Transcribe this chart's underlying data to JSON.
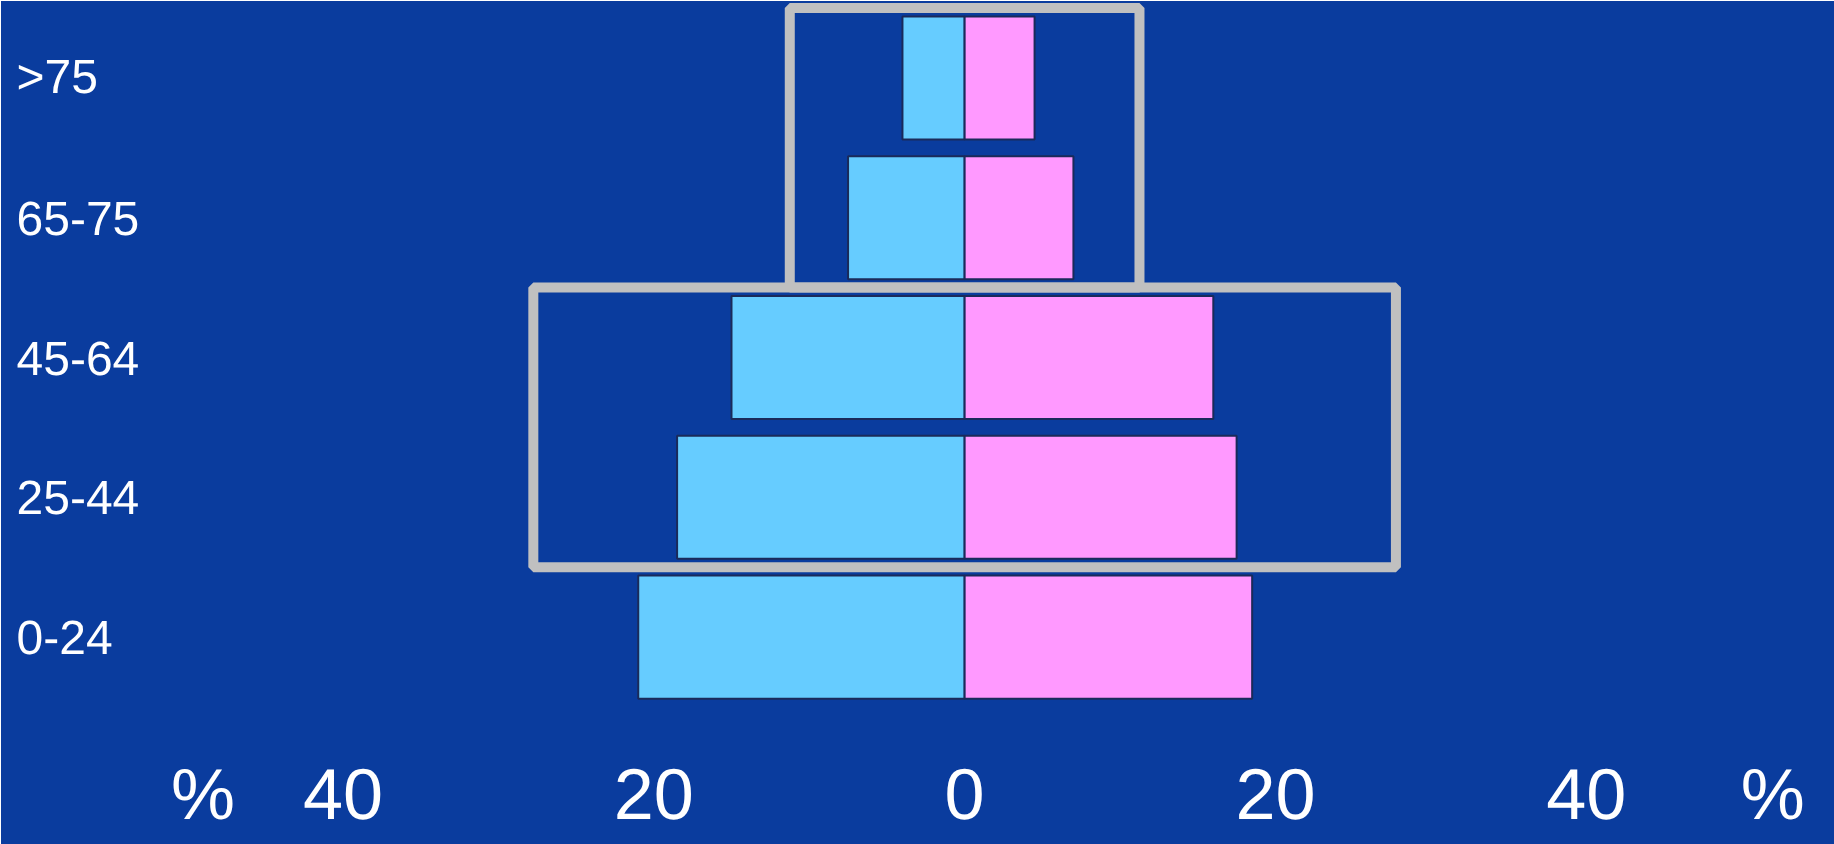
{
  "chart_data": {
    "type": "bar",
    "orientation": "horizontal",
    "categories": [
      ">75",
      "65-75",
      "45-64",
      "25-44",
      "0-24"
    ],
    "series": [
      {
        "color": "#66ccff",
        "values": [
          -4,
          -7.5,
          -15,
          -18.5,
          -21
        ]
      },
      {
        "color": "#ff99ff",
        "values": [
          4.5,
          7,
          16,
          17.5,
          18.5
        ]
      }
    ],
    "xlim": [
      -62,
      56
    ],
    "xticks": [
      {
        "value": -49,
        "label": "%"
      },
      {
        "value": -40,
        "label": "40"
      },
      {
        "value": -20,
        "label": "20"
      },
      0,
      20,
      40,
      {
        "value": 52,
        "label": "%"
      }
    ],
    "stacked": true,
    "grid": false
  }
}
